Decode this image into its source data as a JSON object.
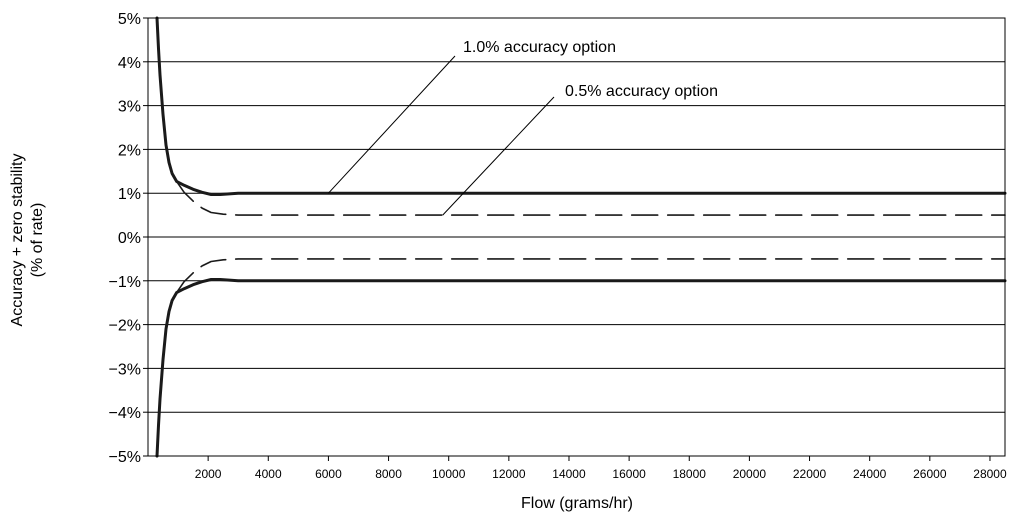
{
  "chart_data": {
    "type": "line",
    "title": "",
    "xlabel": "Flow (grams/hr)",
    "ylabel_lines": [
      "Accuracy + zero stability",
      "(% of rate)"
    ],
    "xlim": [
      0,
      28500
    ],
    "ylim": [
      -5,
      5
    ],
    "x_ticks": [
      2000,
      4000,
      6000,
      8000,
      10000,
      12000,
      14000,
      16000,
      18000,
      20000,
      22000,
      24000,
      26000,
      28000
    ],
    "x_tick_labels": [
      "2000",
      "4000",
      "6000",
      "8000",
      "10000",
      "12000",
      "14000",
      "16000",
      "18000",
      "20000",
      "22000",
      "24000",
      "26000",
      "28000"
    ],
    "y_ticks": [
      5,
      4,
      3,
      2,
      1,
      0,
      -1,
      -2,
      -3,
      -4,
      -5
    ],
    "y_tick_labels": [
      "5%",
      "4%",
      "3%",
      "2%",
      "1%",
      "0%",
      "−1%",
      "−2%",
      "−3%",
      "−4%",
      "−5%"
    ],
    "grid": "horizontal",
    "legend": "none",
    "series": [
      {
        "name": "1.0% accuracy option",
        "style": "solid",
        "color": "#1a1a1a",
        "upper": [
          [
            300,
            5.0
          ],
          [
            350,
            4.3
          ],
          [
            400,
            3.7
          ],
          [
            500,
            2.8
          ],
          [
            600,
            2.1
          ],
          [
            700,
            1.7
          ],
          [
            800,
            1.45
          ],
          [
            950,
            1.27
          ],
          [
            1200,
            1.18
          ],
          [
            1500,
            1.09
          ],
          [
            1800,
            1.02
          ],
          [
            2100,
            0.97
          ],
          [
            2400,
            0.97
          ],
          [
            3000,
            1.0
          ],
          [
            28500,
            1.0
          ]
        ],
        "lower": [
          [
            300,
            -5.0
          ],
          [
            350,
            -4.3
          ],
          [
            400,
            -3.7
          ],
          [
            500,
            -2.8
          ],
          [
            600,
            -2.1
          ],
          [
            700,
            -1.7
          ],
          [
            800,
            -1.45
          ],
          [
            950,
            -1.27
          ],
          [
            1200,
            -1.18
          ],
          [
            1500,
            -1.09
          ],
          [
            1800,
            -1.02
          ],
          [
            2100,
            -0.97
          ],
          [
            2400,
            -0.97
          ],
          [
            3000,
            -1.0
          ],
          [
            28500,
            -1.0
          ]
        ]
      },
      {
        "name": "0.5% accuracy option",
        "style": "dashed",
        "color": "#1a1a1a",
        "upper": [
          [
            950,
            1.27
          ],
          [
            1200,
            1.02
          ],
          [
            1500,
            0.82
          ],
          [
            1800,
            0.66
          ],
          [
            2100,
            0.56
          ],
          [
            2500,
            0.52
          ],
          [
            3000,
            0.5
          ],
          [
            28500,
            0.5
          ]
        ],
        "lower": [
          [
            950,
            -1.27
          ],
          [
            1200,
            -1.02
          ],
          [
            1500,
            -0.82
          ],
          [
            1800,
            -0.66
          ],
          [
            2100,
            -0.56
          ],
          [
            2500,
            -0.52
          ],
          [
            3000,
            -0.5
          ],
          [
            28500,
            -0.5
          ]
        ]
      }
    ],
    "annotations": [
      {
        "text": "1.0% accuracy option",
        "x": 6000,
        "y": 1.0
      },
      {
        "text": "0.5% accuracy option",
        "x": 9800,
        "y": 0.5
      }
    ]
  }
}
